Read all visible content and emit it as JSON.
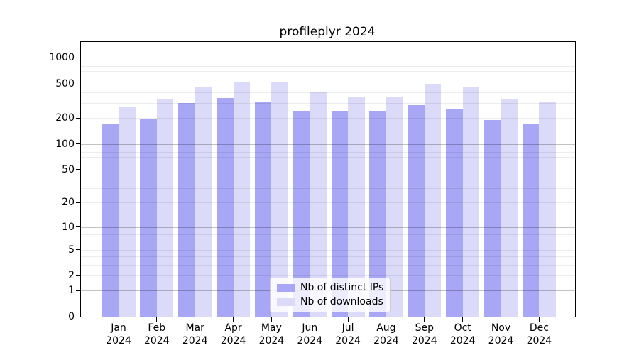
{
  "chart_data": {
    "type": "bar",
    "title": "profileplyr 2024",
    "categories": [
      "Jan",
      "Feb",
      "Mar",
      "Apr",
      "May",
      "Jun",
      "Jul",
      "Aug",
      "Sep",
      "Oct",
      "Nov",
      "Dec"
    ],
    "category_year": "2024",
    "series": [
      {
        "name": "Nb of distinct IPs",
        "color": "#a7a7f6",
        "values": [
          173,
          194,
          301,
          344,
          307,
          240,
          244,
          241,
          285,
          258,
          188,
          171
        ]
      },
      {
        "name": "Nb of downloads",
        "color": "#dbdbf9",
        "values": [
          272,
          329,
          454,
          519,
          520,
          398,
          346,
          353,
          487,
          452,
          329,
          303
        ]
      }
    ],
    "yscale": "log1p",
    "ylim": [
      0,
      1530
    ],
    "yticks": [
      0,
      1,
      2,
      5,
      10,
      20,
      50,
      100,
      200,
      500,
      1000
    ],
    "major_gridlines": [
      1,
      10,
      100,
      1000
    ],
    "minor_gridlines": [
      2,
      3,
      4,
      5,
      6,
      7,
      8,
      9,
      20,
      30,
      40,
      50,
      60,
      70,
      80,
      90,
      200,
      300,
      400,
      500,
      600,
      700,
      800,
      900
    ],
    "grid": true,
    "legend_position": "lower center",
    "axis_color": "#000000",
    "background_color": "#ffffff"
  }
}
